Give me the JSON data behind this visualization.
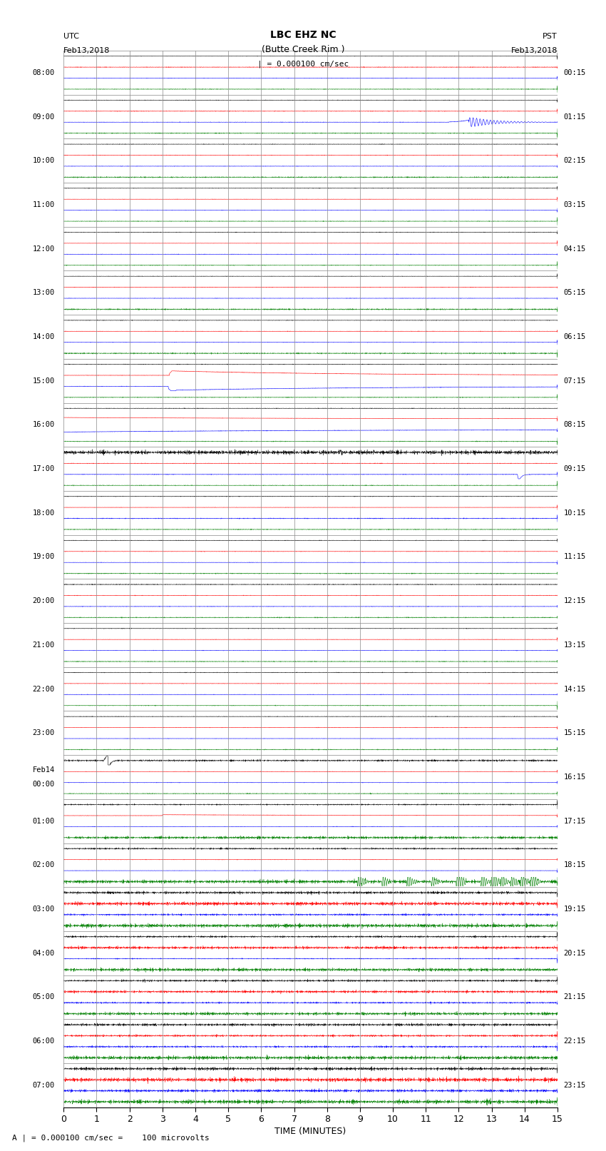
{
  "title_line1": "LBC EHZ NC",
  "title_line2": "(Butte Creek Rim )",
  "scale_text": "| = 0.000100 cm/sec",
  "footer_text": "A | = 0.000100 cm/sec =    100 microvolts",
  "utc_label": "UTC",
  "utc_date": "Feb13,2018",
  "pst_label": "PST",
  "pst_date": "Feb13,2018",
  "xlabel": "TIME (MINUTES)",
  "xlim": [
    0,
    15
  ],
  "xticks": [
    0,
    1,
    2,
    3,
    4,
    5,
    6,
    7,
    8,
    9,
    10,
    11,
    12,
    13,
    14,
    15
  ],
  "bg_color": "#ffffff",
  "colors_ordered": [
    "#000000",
    "#ff0000",
    "#0000ff",
    "#008000"
  ],
  "left_labels_utc": [
    "08:00",
    "",
    "09:00",
    "",
    "10:00",
    "",
    "11:00",
    "",
    "12:00",
    "",
    "13:00",
    "",
    "14:00",
    "",
    "15:00",
    "",
    "16:00",
    "",
    "17:00",
    "",
    "18:00",
    "",
    "19:00",
    "",
    "20:00",
    "",
    "21:00",
    "",
    "22:00",
    "",
    "23:00",
    "",
    "Feb14\n00:00",
    "",
    "01:00",
    "",
    "02:00",
    "",
    "03:00",
    "",
    "04:00",
    "",
    "05:00",
    "",
    "06:00",
    "",
    "07:00",
    ""
  ],
  "right_labels_pst": [
    "00:15",
    "",
    "01:15",
    "",
    "02:15",
    "",
    "03:15",
    "",
    "04:15",
    "",
    "05:15",
    "",
    "06:15",
    "",
    "07:15",
    "",
    "08:15",
    "",
    "09:15",
    "",
    "10:15",
    "",
    "11:15",
    "",
    "12:15",
    "",
    "13:15",
    "",
    "14:15",
    "",
    "15:15",
    "",
    "16:15",
    "",
    "17:15",
    "",
    "18:15",
    "",
    "19:15",
    "",
    "20:15",
    "",
    "21:15",
    "",
    "22:15",
    "",
    "23:15",
    ""
  ],
  "n_rows": 24,
  "n_traces_per_row": 4,
  "seed": 42
}
